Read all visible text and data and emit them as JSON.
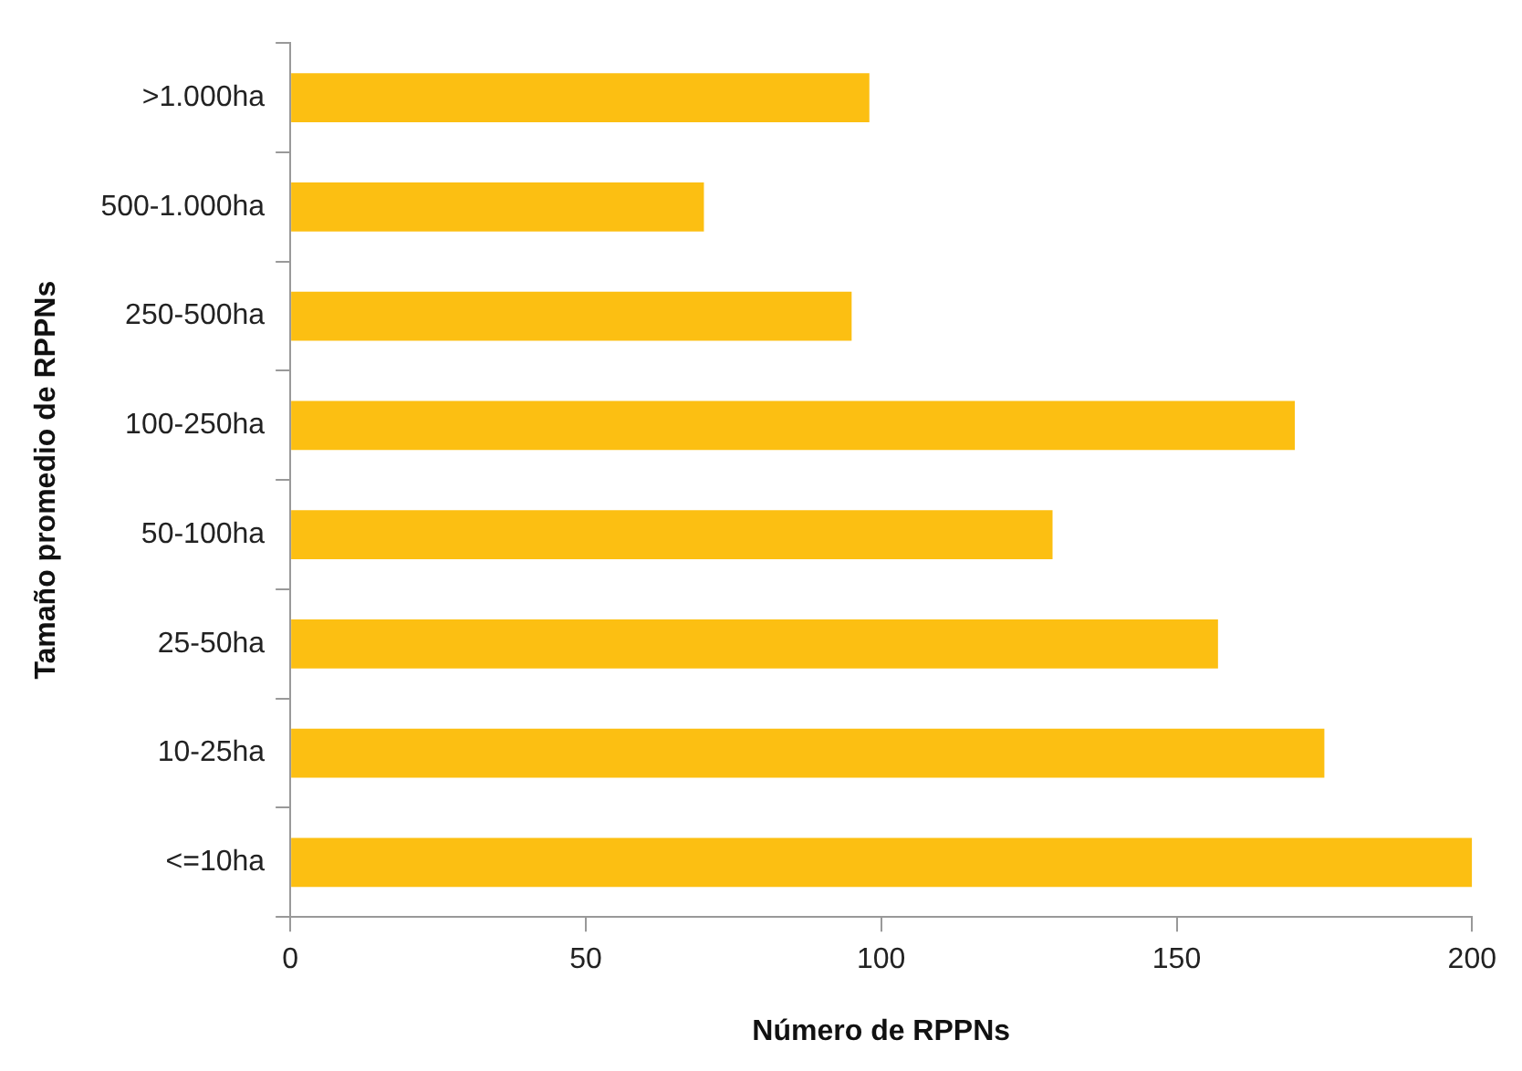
{
  "chart_data": {
    "type": "bar",
    "orientation": "horizontal",
    "xlabel": "Número de RPPNs",
    "ylabel": "Tamaño promedio de RPPNs",
    "categories": [
      ">1.000ha",
      "500-1.000ha",
      "250-500ha",
      "100-250ha",
      "50-100ha",
      "25-50ha",
      "10-25ha",
      "<=10ha"
    ],
    "values": [
      98,
      70,
      95,
      170,
      129,
      157,
      175,
      200
    ],
    "color": "#fcbf12",
    "xlim": [
      0,
      200
    ],
    "xticks": [
      0,
      50,
      100,
      150,
      200
    ],
    "grid": false,
    "legend": false
  }
}
